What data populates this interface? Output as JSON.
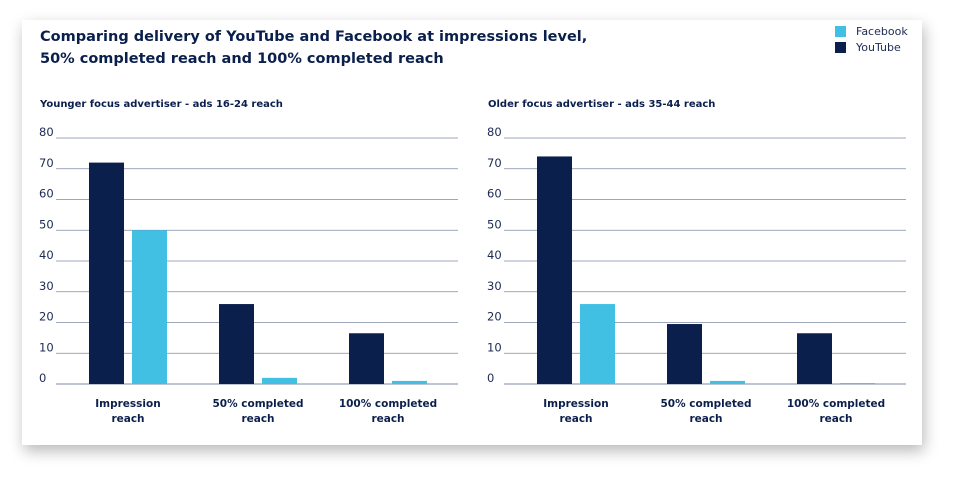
{
  "title_line1": "Comparing delivery of YouTube and Facebook at impressions level,",
  "title_line2": "50% completed reach and 100% completed reach",
  "legend": [
    {
      "label": "Facebook",
      "color": "#41c0e3"
    },
    {
      "label": "YouTube",
      "color": "#0b1f4d"
    }
  ],
  "chart_data": [
    {
      "type": "bar",
      "title": "Younger focus advertiser - ads 16-24 reach",
      "categories": [
        [
          "Impression",
          "reach"
        ],
        [
          "50% completed",
          "reach"
        ],
        [
          "100% completed",
          "reach"
        ]
      ],
      "series": [
        {
          "name": "YouTube",
          "color": "#0b1f4d",
          "values": [
            72,
            26,
            16.5
          ]
        },
        {
          "name": "Facebook",
          "color": "#41c0e3",
          "values": [
            50,
            2,
            1
          ]
        }
      ],
      "yticks": [
        0,
        10,
        20,
        30,
        40,
        50,
        60,
        70,
        80
      ],
      "ylim": [
        0,
        80
      ],
      "grid": true
    },
    {
      "type": "bar",
      "title": "Older focus advertiser - ads 35-44 reach",
      "categories": [
        [
          "Impression",
          "reach"
        ],
        [
          "50% completed",
          "reach"
        ],
        [
          "100% completed",
          "reach"
        ]
      ],
      "series": [
        {
          "name": "YouTube",
          "color": "#0b1f4d",
          "values": [
            74,
            19.5,
            16.5
          ]
        },
        {
          "name": "Facebook",
          "color": "#41c0e3",
          "values": [
            26,
            1,
            0.3
          ]
        }
      ],
      "yticks": [
        0,
        10,
        20,
        30,
        40,
        50,
        60,
        70,
        80
      ],
      "ylim": [
        0,
        80
      ],
      "grid": true
    }
  ]
}
